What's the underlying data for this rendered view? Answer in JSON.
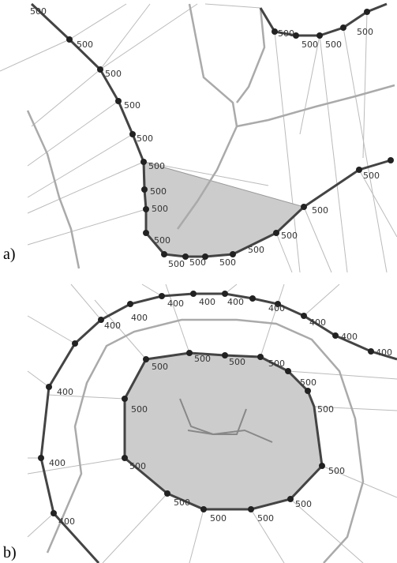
{
  "panels": [
    {
      "label": "a)",
      "node_labels": [
        "500",
        "500",
        "500",
        "500",
        "500",
        "500",
        "500",
        "500",
        "500",
        "500",
        "500",
        "500",
        "500",
        "500",
        "500",
        "500",
        "500",
        "500",
        "500",
        "500"
      ]
    },
    {
      "label": "b)",
      "node_labels": [
        "400",
        "400",
        "400",
        "400",
        "400",
        "400",
        "400",
        "400",
        "400",
        "400",
        "400",
        "400",
        "500",
        "500",
        "500",
        "500",
        "500",
        "500",
        "500",
        "500",
        "500",
        "500",
        "500",
        "500",
        "500"
      ]
    }
  ]
}
